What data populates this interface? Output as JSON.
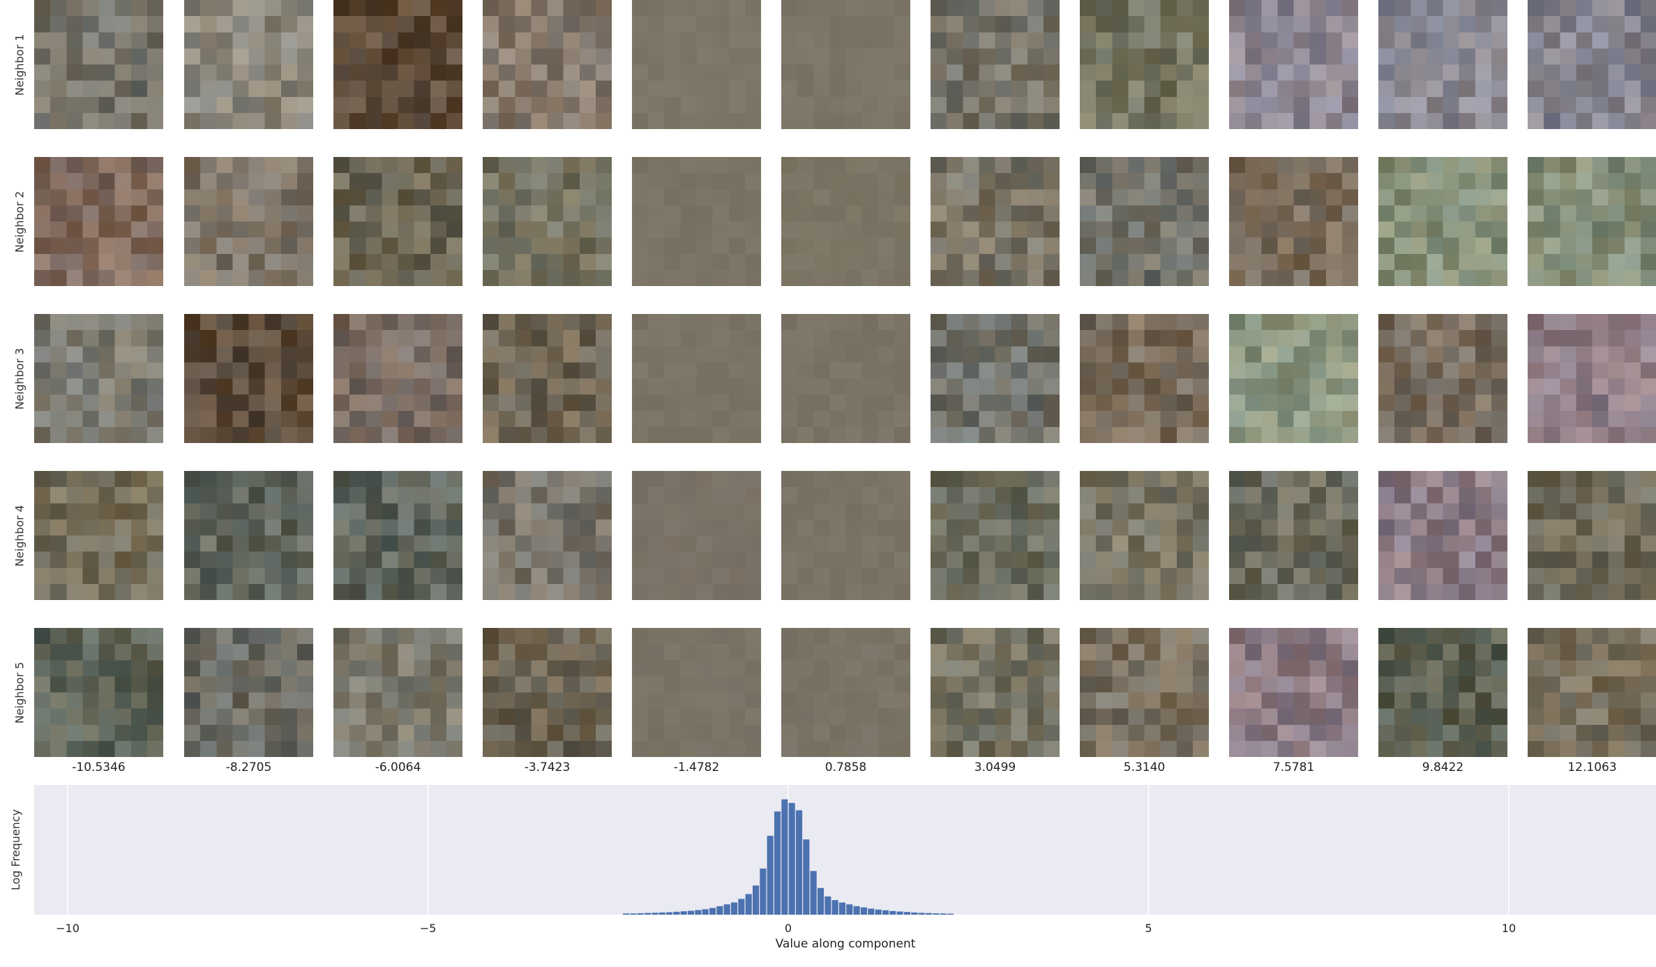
{
  "neighbor_labels": [
    "Neighbor 1",
    "Neighbor 2",
    "Neighbor 3",
    "Neighbor 4",
    "Neighbor 5"
  ],
  "column_values": [
    "-10.5346",
    "-8.2705",
    "-6.0064",
    "-3.7423",
    "-1.4782",
    "0.7858",
    "3.0499",
    "5.3140",
    "7.5781",
    "9.8422",
    "12.1063"
  ],
  "tile_base_colors": [
    [
      "#75736a",
      "#8c877c",
      "#5d4a38",
      "#84786c",
      "#7c7667",
      "#7c7566",
      "#787469",
      "#757561",
      "#8c8591",
      "#8a8892",
      "#86848f"
    ],
    [
      "#826c60",
      "#7f7568",
      "#6c6654",
      "#767361",
      "#7b7465",
      "#7c7565",
      "#7a7466",
      "#717169",
      "#796b5a",
      "#859079",
      "#858f79"
    ],
    [
      "#7c7a70",
      "#5e4d3c",
      "#7a6c63",
      "#6e6453",
      "#7b7465",
      "#7b7466",
      "#717169",
      "#796c5c",
      "#8a957f",
      "#786c5e",
      "#8f7d86"
    ],
    [
      "#756e5b",
      "#5f655c",
      "#5f655c",
      "#7a756b",
      "#7a7266",
      "#7b7466",
      "#6c6c5d",
      "#7b7666",
      "#6c6c5f",
      "#8b7b85",
      "#716c5b"
    ],
    [
      "#5e6458",
      "#6a6a62",
      "#7b786c",
      "#6c6352",
      "#7a7466",
      "#7a7466",
      "#737060",
      "#7a7060",
      "#8e7d86",
      "#5c6052",
      "#79705e"
    ]
  ],
  "chart_data": {
    "type": "bar",
    "xlabel": "Value along component",
    "ylabel": "Log Frequency",
    "xlim": [
      -10.5,
      12.1
    ],
    "x_ticks": [
      -10,
      -5,
      0,
      5,
      10
    ],
    "x_tick_labels": [
      "−10",
      "−5",
      "0",
      "5",
      "10"
    ],
    "grid": true,
    "bar_width": 0.1,
    "bins": [
      -2.25,
      -2.15,
      -2.05,
      -1.95,
      -1.85,
      -1.75,
      -1.65,
      -1.55,
      -1.45,
      -1.35,
      -1.25,
      -1.15,
      -1.05,
      -0.95,
      -0.85,
      -0.75,
      -0.65,
      -0.55,
      -0.45,
      -0.35,
      -0.25,
      -0.15,
      -0.05,
      0.05,
      0.15,
      0.25,
      0.35,
      0.45,
      0.55,
      0.65,
      0.75,
      0.85,
      0.95,
      1.05,
      1.15,
      1.25,
      1.35,
      1.45,
      1.55,
      1.65,
      1.75,
      1.85,
      1.95,
      2.05,
      2.15,
      2.25
    ],
    "values": [
      0.01,
      0.01,
      0.012,
      0.014,
      0.016,
      0.018,
      0.02,
      0.024,
      0.028,
      0.032,
      0.038,
      0.045,
      0.055,
      0.07,
      0.085,
      0.1,
      0.13,
      0.17,
      0.24,
      0.38,
      0.65,
      0.85,
      0.95,
      0.92,
      0.86,
      0.62,
      0.36,
      0.22,
      0.15,
      0.12,
      0.1,
      0.085,
      0.07,
      0.06,
      0.05,
      0.042,
      0.036,
      0.03,
      0.026,
      0.022,
      0.018,
      0.015,
      0.013,
      0.011,
      0.01,
      0.008
    ],
    "ylim": [
      0,
      1.0
    ],
    "bar_color": "#4c72b0",
    "background_color": "#eaeaf2",
    "grid_color": "#ffffff"
  }
}
